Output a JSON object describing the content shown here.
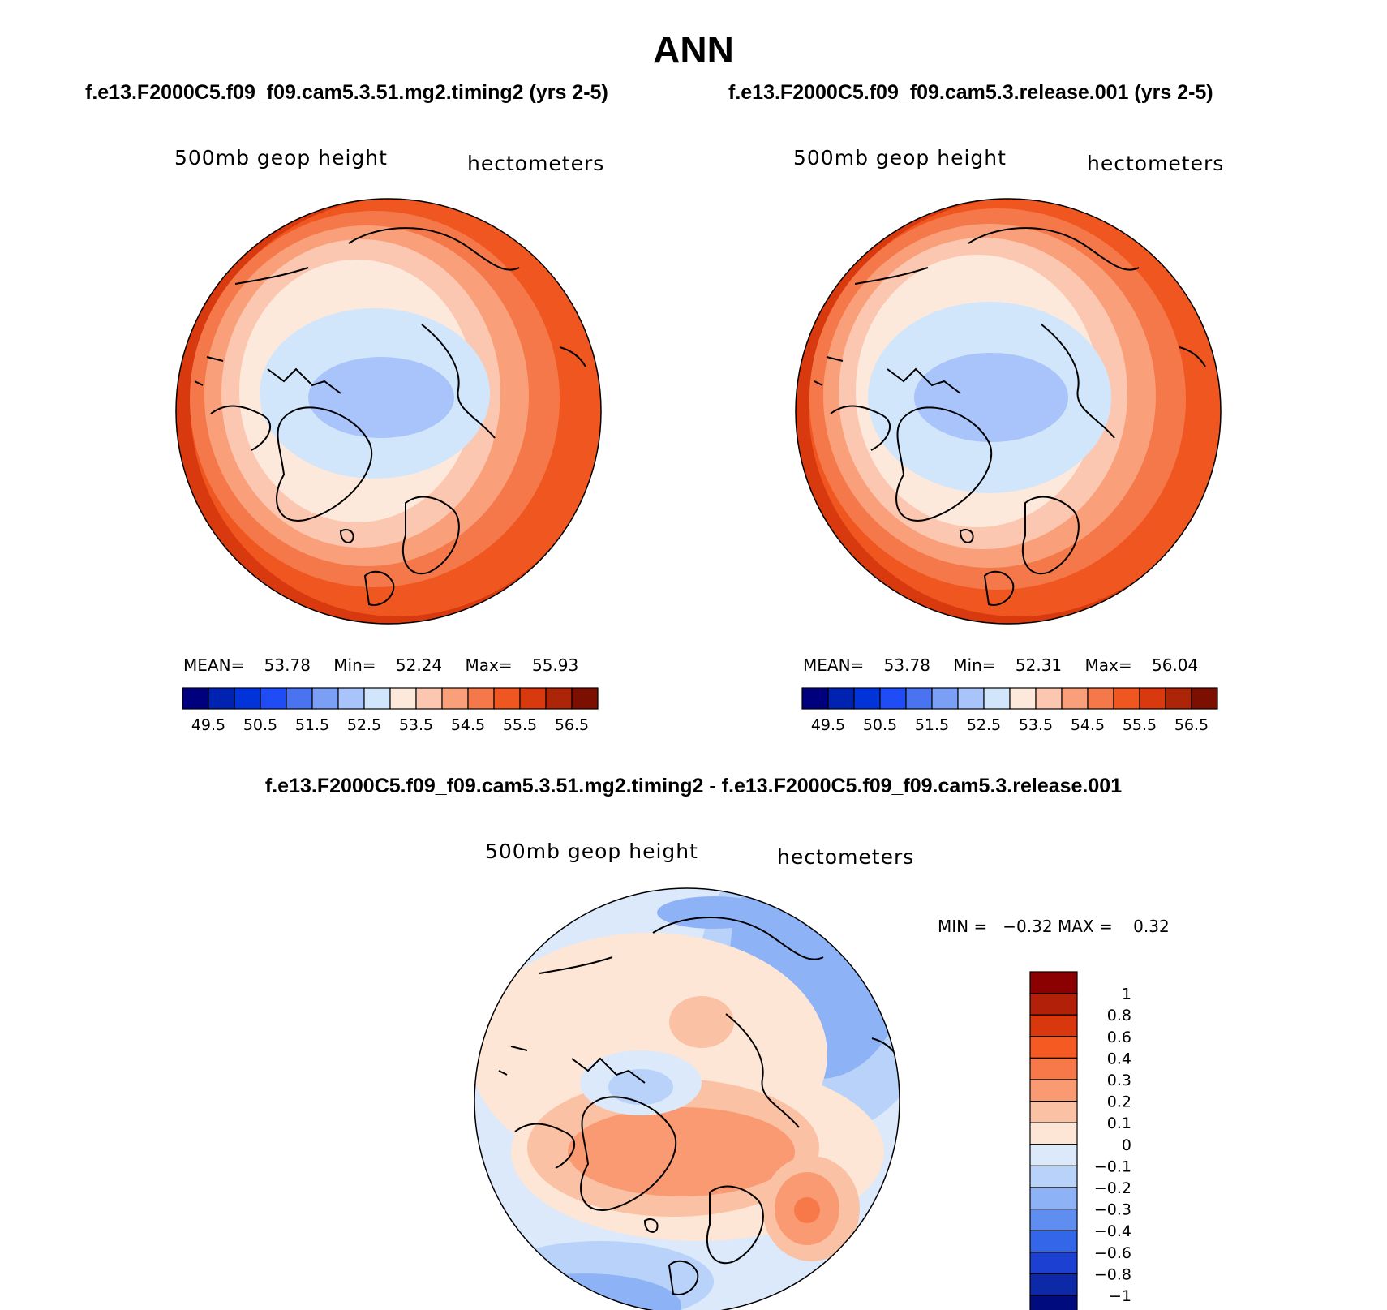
{
  "season": "ANN",
  "panels": [
    {
      "case_title": "f.e13.F2000C5.f09_f09.cam5.3.51.mg2.timing2 (yrs 2-5)",
      "variable_label": "500mb geop height",
      "units_label": "hectometers",
      "stats": {
        "mean_label": "MEAN=",
        "mean": "53.78",
        "min_label": "Min=",
        "min": "52.24",
        "max_label": "Max=",
        "max": "55.93"
      }
    },
    {
      "case_title": "f.e13.F2000C5.f09_f09.cam5.3.release.001 (yrs 2-5)",
      "variable_label": "500mb geop height",
      "units_label": "hectometers",
      "stats": {
        "mean_label": "MEAN=",
        "mean": "53.78",
        "min_label": "Min=",
        "min": "52.31",
        "max_label": "Max=",
        "max": "56.04"
      }
    }
  ],
  "abs_colorbar": {
    "colors": [
      "#00007f",
      "#0022b0",
      "#0033d8",
      "#1f4cf5",
      "#4a73f0",
      "#7b9ff5",
      "#a8c4fa",
      "#d2e6fb",
      "#fde9dc",
      "#fcc7b0",
      "#f9a07a",
      "#f5784a",
      "#f0561f",
      "#d8390f",
      "#ad2508",
      "#7a0f02"
    ],
    "tick_labels": [
      "49.5",
      "50.5",
      "51.5",
      "52.5",
      "53.5",
      "54.5",
      "55.5",
      "56.5"
    ]
  },
  "difference_panel": {
    "title": "f.e13.F2000C5.f09_f09.cam5.3.51.mg2.timing2 - f.e13.F2000C5.f09_f09.cam5.3.release.001",
    "variable_label": "500mb geop height",
    "units_label": "hectometers",
    "minmax_text": "MIN =   −0.32 MAX =    0.32",
    "colorbar": {
      "colors_top_to_bottom": [
        "#8b0000",
        "#b3200a",
        "#d8380c",
        "#f45a21",
        "#f7794a",
        "#f99a72",
        "#fbc1a4",
        "#fde6d6",
        "#dbe9fb",
        "#b8d2fa",
        "#8db2f5",
        "#5f8ef0",
        "#3466ea",
        "#1c40d2",
        "#0d29a8",
        "#000b7e"
      ],
      "tick_labels": [
        "1",
        "0.8",
        "0.6",
        "0.4",
        "0.3",
        "0.2",
        "0.1",
        "0",
        "−0.1",
        "−0.2",
        "−0.3",
        "−0.4",
        "−0.6",
        "−0.8",
        "−1"
      ]
    }
  }
}
